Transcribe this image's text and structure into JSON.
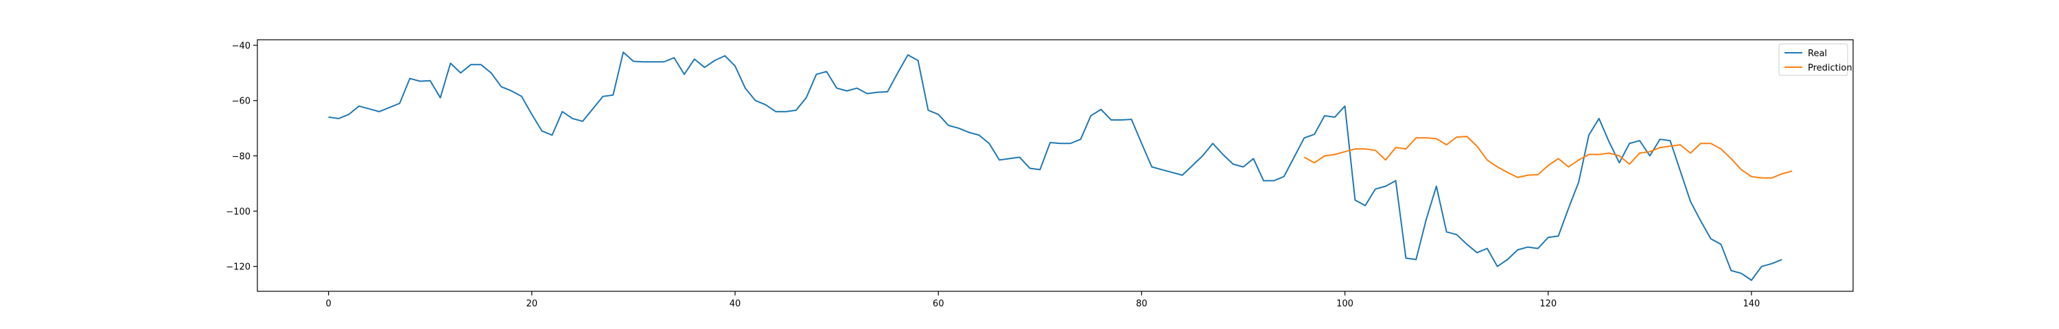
{
  "chart_data": {
    "type": "line",
    "title": "",
    "xlabel": "",
    "ylabel": "",
    "xlim": [
      -7,
      150
    ],
    "ylim": [
      -129,
      -38
    ],
    "x_ticks": [
      0,
      20,
      40,
      60,
      80,
      100,
      120,
      140
    ],
    "y_ticks": [
      -120,
      -100,
      -80,
      -60,
      -40
    ],
    "grid": false,
    "legend_position": "top-right",
    "series": [
      {
        "name": "Real",
        "color": "#1f77b4",
        "x_start": 0,
        "values": [
          -66,
          -66.5,
          -65,
          -62,
          -63,
          -64,
          -62.5,
          -61,
          -52,
          -53,
          -52.8,
          -59,
          -46.5,
          -50,
          -47,
          -47,
          -50,
          -55,
          -56.5,
          -58.5,
          -65,
          -71,
          -72.5,
          -64,
          -66.5,
          -67.5,
          -63,
          -58.5,
          -58,
          -42.5,
          -45.8,
          -46,
          -46,
          -46,
          -44.5,
          -50.5,
          -45,
          -48,
          -45.5,
          -43.8,
          -47.5,
          -55.5,
          -60,
          -61.5,
          -64,
          -64,
          -63.5,
          -59,
          -50.5,
          -49.5,
          -55.5,
          -56.5,
          -55.5,
          -57.5,
          -57,
          -56.8,
          -50,
          -43.5,
          -45.5,
          -63.5,
          -65,
          -69,
          -70,
          -71.5,
          -72.5,
          -75.5,
          -81.5,
          -81,
          -80.5,
          -84.5,
          -85,
          -75.2,
          -75.5,
          -75.5,
          -74,
          -65.5,
          -63.2,
          -67,
          -67,
          -66.8,
          -75.5,
          -84,
          -85,
          -86,
          -87,
          -83.5,
          -80,
          -75.5,
          -79.5,
          -83,
          -84,
          -81,
          -89,
          -89,
          -87.5,
          -80.5,
          -73.5,
          -72.2,
          -65.5,
          -66,
          -62,
          -96,
          -98,
          -92,
          -91,
          -89,
          -117,
          -117.5,
          -103,
          -91,
          -107.5,
          -108.5,
          -112,
          -115,
          -113.5,
          -120,
          -117.5,
          -114,
          -113,
          -113.5,
          -109.5,
          -109,
          -99,
          -89.5,
          -72.5,
          -66.5,
          -75,
          -82.5,
          -75.5,
          -74.5,
          -80,
          -74,
          -74.5,
          -85.5,
          -96.5,
          -103.5,
          -110,
          -112,
          -121.5,
          -122.5,
          -125,
          -120,
          -119,
          -117.5
        ]
      },
      {
        "name": "Prediction",
        "color": "#ff7f0e",
        "x_start": 96,
        "values": [
          -80.5,
          -82.5,
          -80,
          -79.5,
          -78.5,
          -77.5,
          -77.5,
          -78,
          -81.5,
          -77,
          -77.5,
          -73.5,
          -73.5,
          -73.8,
          -76,
          -73.2,
          -73,
          -76.5,
          -81.5,
          -84,
          -86,
          -87.8,
          -87,
          -86.8,
          -83.5,
          -81,
          -84,
          -81.5,
          -79.5,
          -79.5,
          -79,
          -80,
          -83,
          -79,
          -78.5,
          -77,
          -76.5,
          -76,
          -79,
          -75.5,
          -75.5,
          -77.5,
          -81,
          -85,
          -87.5,
          -88,
          -88,
          -86.5,
          -85.5
        ]
      }
    ]
  }
}
